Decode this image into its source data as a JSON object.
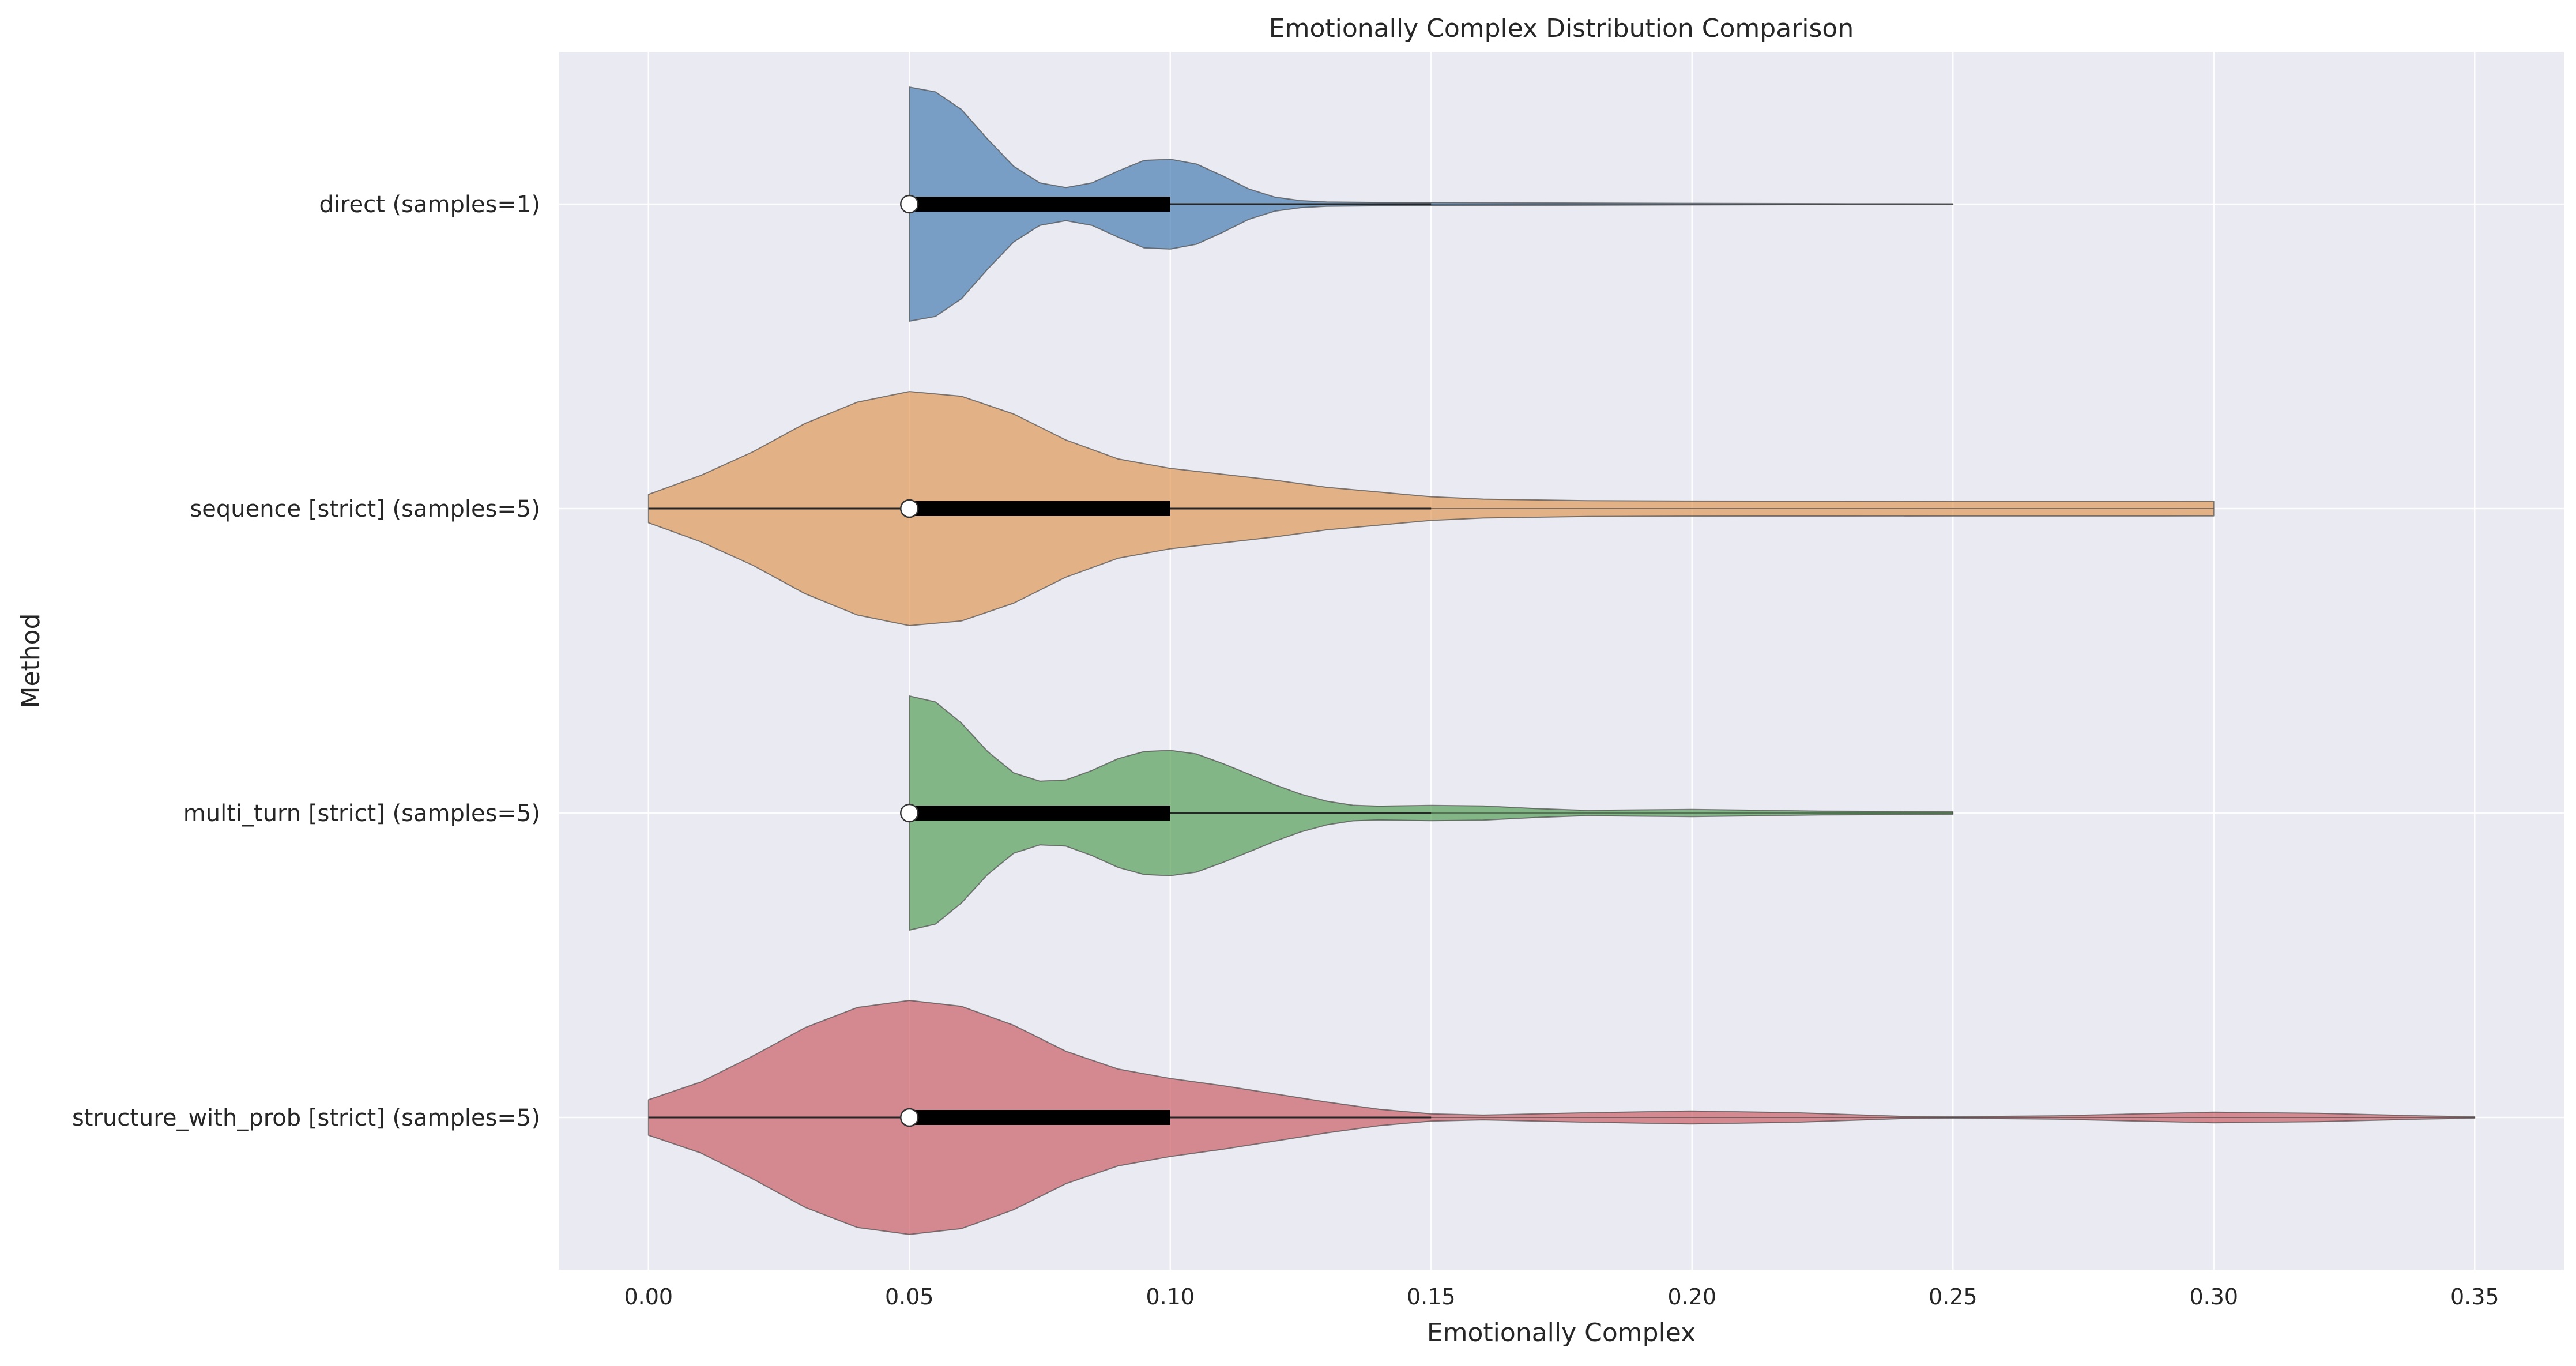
{
  "chart_data": {
    "type": "violin",
    "orientation": "horizontal",
    "title": "Emotionally Complex Distribution Comparison",
    "xlabel": "Emotionally Complex",
    "ylabel": "Method",
    "xlim": [
      -0.0171,
      0.3671
    ],
    "xticks": [
      0.0,
      0.05,
      0.1,
      0.15,
      0.2,
      0.25,
      0.3,
      0.35
    ],
    "xtick_labels": [
      "0.00",
      "0.05",
      "0.10",
      "0.15",
      "0.20",
      "0.25",
      "0.30",
      "0.35"
    ],
    "grid": true,
    "colors": {
      "background": "#eaeaf2",
      "grid": "#ffffff",
      "box": "#000000",
      "median_marker": "#ffffff",
      "outline": "#4d4d4d"
    },
    "categories": [
      "direct (samples=1)",
      "sequence [strict] (samples=5)",
      "multi_turn [strict] (samples=5)",
      "structure_with_prob [strict] (samples=5)"
    ],
    "series": [
      {
        "category": "direct (samples=1)",
        "color": "#4c81b4",
        "min": 0.05,
        "q1": 0.05,
        "median": 0.05,
        "q3": 0.1,
        "max": 0.25,
        "whisker_high": 0.15,
        "density": [
          [
            0.05,
            0.99
          ],
          [
            0.055,
            0.95
          ],
          [
            0.06,
            0.8
          ],
          [
            0.065,
            0.55
          ],
          [
            0.07,
            0.32
          ],
          [
            0.075,
            0.18
          ],
          [
            0.08,
            0.14
          ],
          [
            0.085,
            0.18
          ],
          [
            0.09,
            0.28
          ],
          [
            0.095,
            0.37
          ],
          [
            0.1,
            0.38
          ],
          [
            0.105,
            0.34
          ],
          [
            0.11,
            0.24
          ],
          [
            0.115,
            0.13
          ],
          [
            0.12,
            0.06
          ],
          [
            0.125,
            0.03
          ],
          [
            0.13,
            0.018
          ],
          [
            0.14,
            0.014
          ],
          [
            0.15,
            0.013
          ],
          [
            0.17,
            0.01
          ],
          [
            0.2,
            0.007
          ],
          [
            0.23,
            0.004
          ],
          [
            0.25,
            0.003
          ]
        ]
      },
      {
        "category": "sequence [strict] (samples=5)",
        "color": "#e09b5c",
        "min": 0.0,
        "q1": 0.05,
        "median": 0.05,
        "q3": 0.1,
        "max": 0.3,
        "whisker_low": 0.0,
        "whisker_high": 0.15,
        "density": [
          [
            0.0,
            0.12
          ],
          [
            0.01,
            0.28
          ],
          [
            0.02,
            0.48
          ],
          [
            0.03,
            0.72
          ],
          [
            0.04,
            0.9
          ],
          [
            0.05,
            0.99
          ],
          [
            0.06,
            0.95
          ],
          [
            0.07,
            0.8
          ],
          [
            0.08,
            0.58
          ],
          [
            0.09,
            0.42
          ],
          [
            0.1,
            0.34
          ],
          [
            0.11,
            0.29
          ],
          [
            0.12,
            0.24
          ],
          [
            0.13,
            0.18
          ],
          [
            0.14,
            0.14
          ],
          [
            0.15,
            0.1
          ],
          [
            0.16,
            0.08
          ],
          [
            0.18,
            0.067
          ],
          [
            0.2,
            0.064
          ],
          [
            0.25,
            0.063
          ],
          [
            0.29,
            0.063
          ],
          [
            0.3,
            0.062
          ]
        ]
      },
      {
        "category": "multi_turn [strict] (samples=5)",
        "color": "#5ba25b",
        "min": 0.05,
        "q1": 0.05,
        "median": 0.05,
        "q3": 0.1,
        "max": 0.25,
        "whisker_high": 0.15,
        "density": [
          [
            0.05,
            0.99
          ],
          [
            0.055,
            0.94
          ],
          [
            0.06,
            0.76
          ],
          [
            0.065,
            0.52
          ],
          [
            0.07,
            0.34
          ],
          [
            0.075,
            0.27
          ],
          [
            0.08,
            0.28
          ],
          [
            0.085,
            0.36
          ],
          [
            0.09,
            0.46
          ],
          [
            0.095,
            0.52
          ],
          [
            0.1,
            0.53
          ],
          [
            0.105,
            0.5
          ],
          [
            0.11,
            0.42
          ],
          [
            0.115,
            0.33
          ],
          [
            0.12,
            0.24
          ],
          [
            0.125,
            0.16
          ],
          [
            0.13,
            0.1
          ],
          [
            0.135,
            0.066
          ],
          [
            0.14,
            0.058
          ],
          [
            0.15,
            0.065
          ],
          [
            0.16,
            0.06
          ],
          [
            0.17,
            0.038
          ],
          [
            0.18,
            0.022
          ],
          [
            0.19,
            0.027
          ],
          [
            0.2,
            0.03
          ],
          [
            0.21,
            0.025
          ],
          [
            0.225,
            0.016
          ],
          [
            0.24,
            0.013
          ],
          [
            0.25,
            0.012
          ]
        ]
      },
      {
        "category": "structure_with_prob [strict] (samples=5)",
        "color": "#cc6369",
        "min": 0.0,
        "q1": 0.05,
        "median": 0.05,
        "q3": 0.1,
        "max": 0.35,
        "whisker_low": 0.0,
        "whisker_high": 0.15,
        "density": [
          [
            0.0,
            0.15
          ],
          [
            0.01,
            0.3
          ],
          [
            0.02,
            0.52
          ],
          [
            0.03,
            0.76
          ],
          [
            0.04,
            0.93
          ],
          [
            0.05,
            0.99
          ],
          [
            0.06,
            0.94
          ],
          [
            0.07,
            0.78
          ],
          [
            0.08,
            0.56
          ],
          [
            0.09,
            0.41
          ],
          [
            0.1,
            0.33
          ],
          [
            0.11,
            0.27
          ],
          [
            0.12,
            0.2
          ],
          [
            0.13,
            0.13
          ],
          [
            0.14,
            0.07
          ],
          [
            0.15,
            0.03
          ],
          [
            0.16,
            0.02
          ],
          [
            0.18,
            0.04
          ],
          [
            0.2,
            0.055
          ],
          [
            0.22,
            0.04
          ],
          [
            0.24,
            0.01
          ],
          [
            0.25,
            0.006
          ],
          [
            0.27,
            0.014
          ],
          [
            0.3,
            0.045
          ],
          [
            0.32,
            0.035
          ],
          [
            0.34,
            0.013
          ],
          [
            0.35,
            0.006
          ]
        ]
      }
    ]
  }
}
